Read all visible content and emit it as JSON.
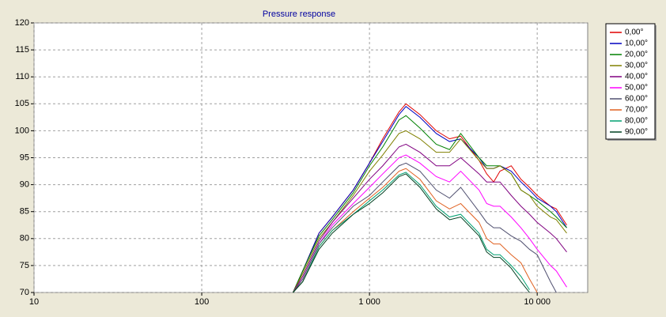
{
  "chart_data": {
    "type": "line",
    "title": "Pressure response",
    "xscale": "log",
    "grid": true,
    "legend": "right",
    "xlim": [
      10,
      20000
    ],
    "ylim": [
      70,
      120
    ],
    "xticks": [
      {
        "value": 10,
        "label": "10"
      },
      {
        "value": 100,
        "label": "100"
      },
      {
        "value": 1000,
        "label": "1 000"
      },
      {
        "value": 10000,
        "label": "10 000"
      }
    ],
    "yticks": [
      70,
      75,
      80,
      85,
      90,
      95,
      100,
      105,
      110,
      115,
      120
    ],
    "x": [
      350,
      400,
      500,
      600,
      800,
      1000,
      1200,
      1500,
      1650,
      2000,
      2500,
      3000,
      3500,
      4500,
      5000,
      5500,
      6000,
      7000,
      8000,
      9000,
      10000,
      12000,
      13000,
      15000
    ],
    "series": [
      {
        "name": "0,00°",
        "color": "#e00000",
        "values": [
          70,
          74,
          81,
          84,
          89,
          94,
          98.5,
          103.5,
          105,
          103,
          100,
          98.5,
          99,
          94.5,
          92,
          90.5,
          92.5,
          93.5,
          91,
          89.5,
          88,
          86,
          85.5,
          82.5
        ]
      },
      {
        "name": "10,00°",
        "color": "#0000c0",
        "values": [
          70,
          74,
          81,
          84,
          89,
          94,
          98,
          103,
          104.5,
          102.5,
          99.5,
          98,
          98.5,
          95,
          93,
          93,
          93.5,
          92.5,
          90.5,
          89,
          87.5,
          86,
          85,
          82
        ]
      },
      {
        "name": "20,00°",
        "color": "#008000",
        "values": [
          70,
          74,
          80.5,
          83.5,
          88.5,
          93.5,
          97,
          102,
          102.8,
          100.5,
          97.5,
          96.5,
          99.5,
          95,
          93.5,
          93.5,
          93.5,
          92,
          89,
          88,
          87,
          85,
          84,
          82
        ]
      },
      {
        "name": "30,00°",
        "color": "#808000",
        "values": [
          70,
          73.5,
          80,
          83,
          88,
          92.5,
          95.5,
          99.5,
          100,
          98.5,
          96,
          96,
          98.5,
          94.5,
          93,
          93,
          93.5,
          92,
          89,
          88,
          86,
          84,
          83.5,
          81
        ]
      },
      {
        "name": "40,00°",
        "color": "#800080",
        "values": [
          70,
          73,
          79.5,
          83,
          87.5,
          91,
          93.5,
          97,
          97.5,
          96,
          93.5,
          93.5,
          95,
          92,
          90.5,
          90.5,
          90.5,
          88,
          86,
          84.5,
          83,
          81,
          80,
          77.5
        ]
      },
      {
        "name": "50,00°",
        "color": "#ff00ff",
        "values": [
          70,
          72.5,
          79,
          82.5,
          86.5,
          89.5,
          92,
          95,
          95.5,
          94,
          91.5,
          90.5,
          92.5,
          89,
          86.5,
          86,
          86,
          84,
          82,
          80,
          78,
          75,
          74,
          71
        ]
      },
      {
        "name": "60,00°",
        "color": "#505070",
        "values": [
          70,
          72.5,
          79,
          82,
          86,
          88,
          90.5,
          93.5,
          94,
          92.5,
          89,
          87.5,
          89.5,
          85,
          83,
          82,
          82,
          80.5,
          79.5,
          78,
          77,
          72,
          70,
          null
        ]
      },
      {
        "name": "70,00°",
        "color": "#e06020",
        "values": [
          70,
          72,
          78.5,
          81.5,
          85,
          87.5,
          89.5,
          92.5,
          93,
          91,
          87,
          85.5,
          86.5,
          83,
          80,
          79,
          79,
          77,
          75.5,
          72.5,
          70,
          null,
          null,
          null
        ]
      },
      {
        "name": "80,00°",
        "color": "#00a070",
        "values": [
          70,
          72,
          78.5,
          81.5,
          84.5,
          87,
          89,
          91.8,
          92.3,
          90,
          86,
          84,
          84.5,
          81,
          78,
          77,
          77,
          75,
          73,
          70.5,
          null,
          null,
          null,
          null
        ]
      },
      {
        "name": "90,00°",
        "color": "#004020",
        "values": [
          70,
          72,
          78,
          81,
          84.5,
          86.5,
          88.5,
          91.5,
          92,
          89.5,
          85.5,
          83.5,
          84,
          80.5,
          77.5,
          76.5,
          76.5,
          74.5,
          72,
          70,
          null,
          null,
          null,
          null
        ]
      }
    ]
  }
}
